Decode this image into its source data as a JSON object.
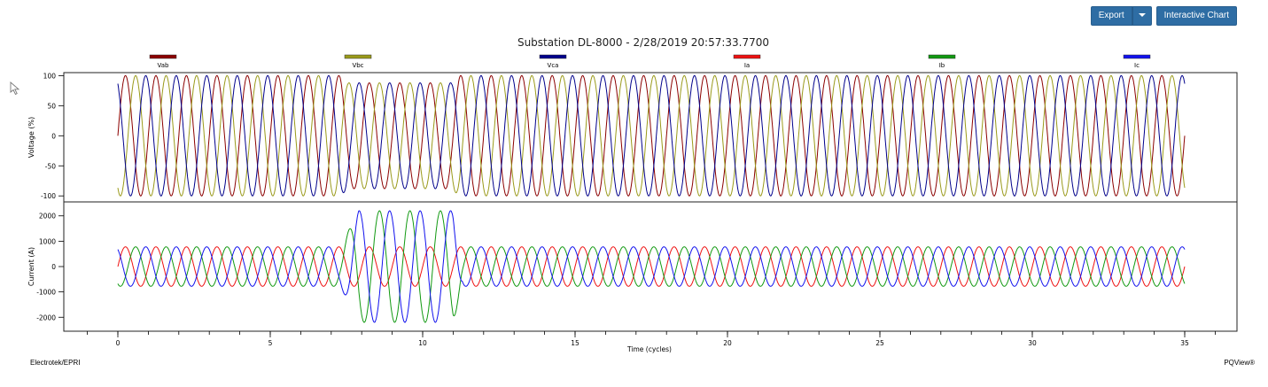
{
  "toolbar": {
    "export_label": "Export",
    "interactive_label": "Interactive Chart"
  },
  "footer": {
    "left": "Electrotek/EPRI",
    "right": "PQView®"
  },
  "chart_data": {
    "type": "line",
    "title": "Substation DL-8000 - 2/28/2019 20:57:33.7700",
    "xlabel": "Time (cycles)",
    "xlim": [
      0,
      35
    ],
    "x_ticks": [
      0,
      5,
      10,
      15,
      20,
      25,
      30,
      35
    ],
    "x_tick_labels": [
      "0",
      "5",
      "10",
      "15",
      "20",
      "25",
      "30",
      "35"
    ],
    "legend": [
      {
        "name": "Vab",
        "color": "#8b0000"
      },
      {
        "name": "Vbc",
        "color": "#9a9a1a"
      },
      {
        "name": "Vca",
        "color": "#00008b"
      },
      {
        "name": "Ia",
        "color": "#ee1111"
      },
      {
        "name": "Ib",
        "color": "#119911"
      },
      {
        "name": "Ic",
        "color": "#1111ee"
      }
    ],
    "panels": [
      {
        "ylabel": "Voltage (%)",
        "ylim": [
          -110,
          105
        ],
        "y_ticks": [
          -100,
          -50,
          0,
          50,
          100
        ],
        "y_tick_labels": [
          "-100",
          "-50",
          "0",
          "50",
          "100"
        ],
        "series": [
          {
            "name": "Vab",
            "color": "#8b0000",
            "amplitude": 100,
            "phase_deg": 0
          },
          {
            "name": "Vbc",
            "color": "#9a9a1a",
            "amplitude": 100,
            "phase_deg": -120
          },
          {
            "name": "Vca",
            "color": "#00008b",
            "amplitude": 100,
            "phase_deg": 120
          }
        ],
        "sag": {
          "start": 7.3,
          "end": 11.2,
          "level": 0.88
        }
      },
      {
        "ylabel": "Current (A)",
        "ylim": [
          -2550,
          2550
        ],
        "y_ticks": [
          -2000,
          -1000,
          0,
          1000,
          2000
        ],
        "y_tick_labels": [
          "-2000",
          "-1000",
          "0",
          "1000",
          "2000"
        ],
        "series": [
          {
            "name": "Ia",
            "color": "#ee1111",
            "amplitude": 780,
            "phase_deg": 0
          },
          {
            "name": "Ib",
            "color": "#119911",
            "amplitude": 780,
            "phase_deg": -120
          },
          {
            "name": "Ic",
            "color": "#1111ee",
            "amplitude": 780,
            "phase_deg": 120
          }
        ],
        "fault": {
          "start": 7.3,
          "end": 11.3,
          "peak": 2200,
          "faulted": [
            "Ib",
            "Ic"
          ]
        }
      }
    ]
  }
}
